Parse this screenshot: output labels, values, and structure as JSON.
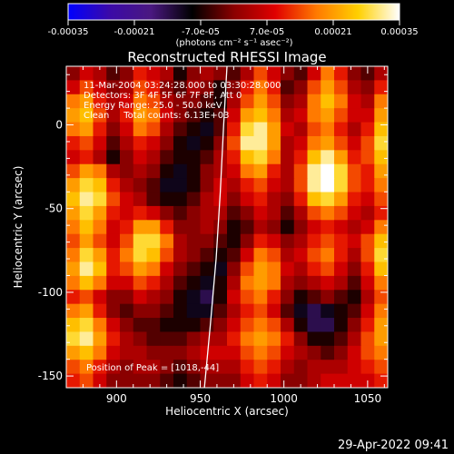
{
  "colorbar": {
    "colormap": [
      "#0000ff",
      "#3b0aa8",
      "#4a1880",
      "#000000",
      "#8a0000",
      "#e00000",
      "#ff7a00",
      "#ffd000",
      "#ffffff"
    ],
    "tick_labels": [
      "-0.00035",
      "-0.00021",
      "-7.0e-05",
      "7.0e-05",
      "0.00021",
      "0.00035"
    ],
    "unit_label": "(photons cm⁻² s⁻¹ asec⁻²)"
  },
  "chart_data": {
    "type": "heatmap",
    "title": "Reconstructed RHESSI Image",
    "xlabel": "Heliocentric X (arcsec)",
    "ylabel": "Heliocentric Y (arcsec)",
    "xlim": [
      870,
      1062
    ],
    "ylim": [
      -157,
      35
    ],
    "xticks": [
      900,
      950,
      1000,
      1050
    ],
    "yticks": [
      0,
      -50,
      -100,
      -150
    ],
    "annotations": [
      "11-Mar-2004 03:24:28.000 to 03:30:28.000",
      "Detectors: 3F 4F 5F 6F 7F 8F, Att 0",
      "Energy Range: 25.0 - 50.0 keV",
      "Clean     Total counts: 6.13E+03"
    ],
    "peak_label": "Position of Peak = [1018,-44]",
    "peak": [
      1018,
      -44
    ],
    "limb_x": [
      952.5,
      956,
      959.5,
      962,
      964,
      966
    ],
    "limb_y": [
      -157,
      -120,
      -80,
      -40,
      0,
      35
    ],
    "image": [
      [
        0.0,
        0.2,
        0.1,
        -0.1,
        0.0,
        0.3,
        0.2,
        0.1,
        -0.2,
        0.0,
        0.1,
        0.0,
        -0.1,
        0.1,
        0.4,
        0.2,
        0.0,
        -0.1,
        0.2,
        0.5,
        0.3,
        0.0,
        -0.1,
        0.1
      ],
      [
        0.2,
        0.4,
        0.2,
        0.0,
        0.1,
        0.4,
        0.3,
        0.0,
        -0.1,
        0.1,
        0.0,
        -0.2,
        0.0,
        0.3,
        0.5,
        0.3,
        -0.1,
        0.0,
        0.4,
        0.6,
        0.4,
        0.1,
        0.0,
        0.3
      ],
      [
        0.5,
        0.6,
        0.3,
        0.1,
        0.2,
        0.5,
        0.4,
        0.1,
        0.0,
        0.0,
        -0.1,
        -0.2,
        0.1,
        0.4,
        0.6,
        0.4,
        0.0,
        0.1,
        0.5,
        0.7,
        0.5,
        0.2,
        0.1,
        0.5
      ],
      [
        0.6,
        0.7,
        0.4,
        0.1,
        0.3,
        0.6,
        0.5,
        0.2,
        0.0,
        -0.1,
        -0.2,
        -0.1,
        0.2,
        0.6,
        0.7,
        0.5,
        0.1,
        0.2,
        0.5,
        0.6,
        0.4,
        0.2,
        0.2,
        0.6
      ],
      [
        0.5,
        0.6,
        0.3,
        0.0,
        0.2,
        0.5,
        0.4,
        0.1,
        -0.1,
        -0.2,
        -0.3,
        -0.1,
        0.3,
        0.8,
        0.9,
        0.6,
        0.2,
        0.1,
        0.4,
        0.5,
        0.3,
        0.1,
        0.3,
        0.7
      ],
      [
        0.3,
        0.4,
        0.2,
        -0.1,
        0.1,
        0.3,
        0.2,
        0.0,
        -0.2,
        -0.3,
        -0.2,
        0.0,
        0.4,
        0.9,
        0.9,
        0.6,
        0.1,
        0.2,
        0.5,
        0.6,
        0.4,
        0.2,
        0.4,
        0.8
      ],
      [
        0.2,
        0.3,
        0.1,
        -0.2,
        0.0,
        0.2,
        0.1,
        -0.1,
        -0.2,
        -0.2,
        -0.1,
        0.1,
        0.3,
        0.7,
        0.8,
        0.5,
        0.1,
        0.3,
        0.7,
        0.9,
        0.6,
        0.3,
        0.4,
        0.7
      ],
      [
        0.4,
        0.6,
        0.5,
        0.1,
        0.0,
        0.1,
        0.0,
        -0.2,
        -0.3,
        -0.2,
        0.0,
        0.1,
        0.2,
        0.5,
        0.6,
        0.3,
        0.1,
        0.4,
        0.9,
        1.0,
        0.8,
        0.4,
        0.3,
        0.6
      ],
      [
        0.6,
        0.8,
        0.7,
        0.3,
        0.1,
        0.0,
        -0.1,
        -0.3,
        -0.3,
        -0.2,
        0.0,
        0.2,
        0.1,
        0.3,
        0.4,
        0.2,
        0.1,
        0.4,
        0.9,
        1.0,
        0.8,
        0.4,
        0.3,
        0.5
      ],
      [
        0.7,
        0.9,
        0.8,
        0.4,
        0.2,
        0.1,
        -0.1,
        -0.2,
        -0.2,
        -0.1,
        0.1,
        0.2,
        0.0,
        0.2,
        0.3,
        0.1,
        0.0,
        0.3,
        0.7,
        0.8,
        0.6,
        0.3,
        0.2,
        0.4
      ],
      [
        0.6,
        0.8,
        0.6,
        0.3,
        0.2,
        0.3,
        0.2,
        0.0,
        -0.1,
        0.0,
        0.1,
        0.1,
        -0.1,
        0.0,
        0.2,
        0.1,
        -0.1,
        0.1,
        0.4,
        0.5,
        0.4,
        0.2,
        0.1,
        0.3
      ],
      [
        0.5,
        0.7,
        0.5,
        0.2,
        0.3,
        0.6,
        0.6,
        0.3,
        0.0,
        0.0,
        0.1,
        0.0,
        -0.2,
        -0.1,
        0.1,
        0.0,
        -0.2,
        0.0,
        0.2,
        0.3,
        0.2,
        0.1,
        0.2,
        0.5
      ],
      [
        0.4,
        0.6,
        0.4,
        0.2,
        0.4,
        0.8,
        0.8,
        0.5,
        0.1,
        0.0,
        0.0,
        -0.1,
        -0.2,
        0.0,
        0.3,
        0.2,
        0.0,
        0.1,
        0.3,
        0.4,
        0.3,
        0.2,
        0.4,
        0.7
      ],
      [
        0.5,
        0.8,
        0.6,
        0.3,
        0.5,
        0.8,
        0.7,
        0.4,
        0.1,
        0.0,
        -0.1,
        -0.2,
        -0.1,
        0.2,
        0.5,
        0.4,
        0.1,
        0.2,
        0.4,
        0.5,
        0.3,
        0.1,
        0.4,
        0.8
      ],
      [
        0.6,
        0.9,
        0.7,
        0.3,
        0.4,
        0.6,
        0.5,
        0.2,
        0.0,
        -0.1,
        -0.2,
        -0.3,
        0.0,
        0.4,
        0.6,
        0.5,
        0.2,
        0.1,
        0.3,
        0.4,
        0.2,
        0.0,
        0.3,
        0.7
      ],
      [
        0.5,
        0.7,
        0.5,
        0.2,
        0.2,
        0.4,
        0.3,
        0.1,
        -0.1,
        -0.2,
        -0.3,
        -0.2,
        0.1,
        0.5,
        0.6,
        0.5,
        0.1,
        0.0,
        0.1,
        0.2,
        0.1,
        -0.1,
        0.2,
        0.5
      ],
      [
        0.3,
        0.4,
        0.2,
        0.0,
        0.0,
        0.2,
        0.1,
        0.0,
        -0.2,
        -0.3,
        -0.4,
        -0.2,
        0.2,
        0.4,
        0.5,
        0.3,
        0.0,
        -0.2,
        -0.1,
        0.0,
        -0.1,
        -0.2,
        0.1,
        0.4
      ],
      [
        0.5,
        0.6,
        0.3,
        0.0,
        -0.1,
        0.0,
        0.0,
        -0.1,
        -0.2,
        -0.3,
        -0.3,
        -0.1,
        0.1,
        0.3,
        0.4,
        0.2,
        -0.1,
        -0.3,
        -0.4,
        -0.3,
        -0.2,
        -0.1,
        0.2,
        0.5
      ],
      [
        0.7,
        0.8,
        0.5,
        0.2,
        0.0,
        -0.1,
        -0.1,
        -0.2,
        -0.2,
        -0.2,
        -0.1,
        0.0,
        0.2,
        0.4,
        0.5,
        0.4,
        0.1,
        -0.2,
        -0.4,
        -0.4,
        -0.2,
        0.0,
        0.3,
        0.6
      ],
      [
        0.8,
        0.9,
        0.6,
        0.3,
        0.1,
        0.0,
        -0.1,
        -0.1,
        -0.1,
        0.0,
        0.1,
        0.1,
        0.3,
        0.5,
        0.6,
        0.5,
        0.3,
        0.0,
        -0.2,
        -0.2,
        -0.1,
        0.1,
        0.4,
        0.6
      ],
      [
        0.6,
        0.7,
        0.5,
        0.2,
        0.1,
        0.1,
        0.0,
        0.0,
        0.0,
        0.1,
        0.2,
        0.2,
        0.2,
        0.4,
        0.5,
        0.4,
        0.2,
        0.1,
        0.0,
        -0.1,
        0.0,
        0.2,
        0.4,
        0.5
      ],
      [
        0.4,
        0.5,
        0.3,
        0.1,
        0.0,
        0.1,
        0.1,
        0.0,
        -0.1,
        0.0,
        0.1,
        0.1,
        0.1,
        0.3,
        0.4,
        0.3,
        0.1,
        0.0,
        0.1,
        0.1,
        0.1,
        0.2,
        0.3,
        0.4
      ],
      [
        0.3,
        0.4,
        0.2,
        0.0,
        0.0,
        0.0,
        0.0,
        -0.1,
        -0.2,
        -0.1,
        0.0,
        0.0,
        0.0,
        0.2,
        0.3,
        0.2,
        0.0,
        0.0,
        0.1,
        0.2,
        0.2,
        0.2,
        0.2,
        0.3
      ]
    ]
  },
  "footer": {
    "timestamp": "29-Apr-2022 09:41"
  }
}
